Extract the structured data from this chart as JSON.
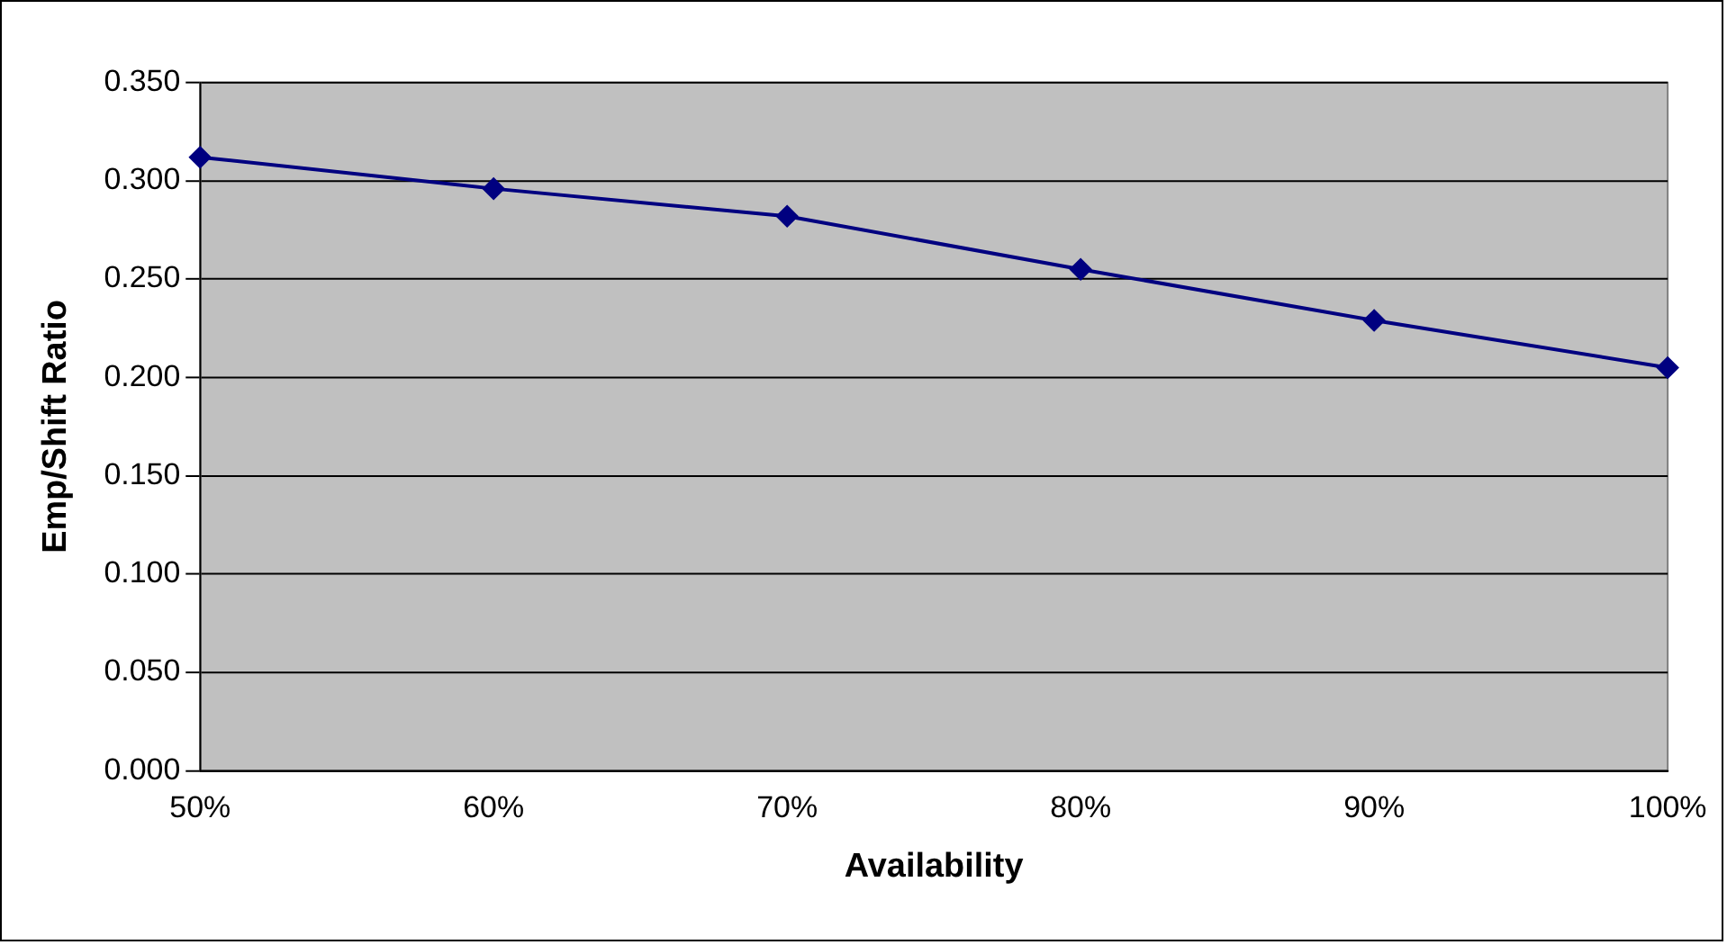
{
  "chart_data": {
    "type": "line",
    "xlabel": "Availability",
    "ylabel": "Emp/Shift Ratio",
    "categories": [
      "50%",
      "60%",
      "70%",
      "80%",
      "90%",
      "100%"
    ],
    "series": [
      {
        "color": "#000080",
        "values": [
          0.312,
          0.296,
          0.282,
          0.255,
          0.229,
          0.205
        ]
      }
    ],
    "ylim": [
      0,
      0.35
    ],
    "yticks": [
      {
        "value": 0,
        "label": "0.000"
      },
      {
        "value": 0.05,
        "label": "0.050"
      },
      {
        "value": 0.1,
        "label": "0.100"
      },
      {
        "value": 0.15,
        "label": "0.150"
      },
      {
        "value": 0.2,
        "label": "0.200"
      },
      {
        "value": 0.25,
        "label": "0.250"
      },
      {
        "value": 0.3,
        "label": "0.300"
      },
      {
        "value": 0.35,
        "label": "0.350"
      }
    ],
    "grid": "y",
    "legend": false,
    "marker": "diamond",
    "line_style": "solid"
  }
}
